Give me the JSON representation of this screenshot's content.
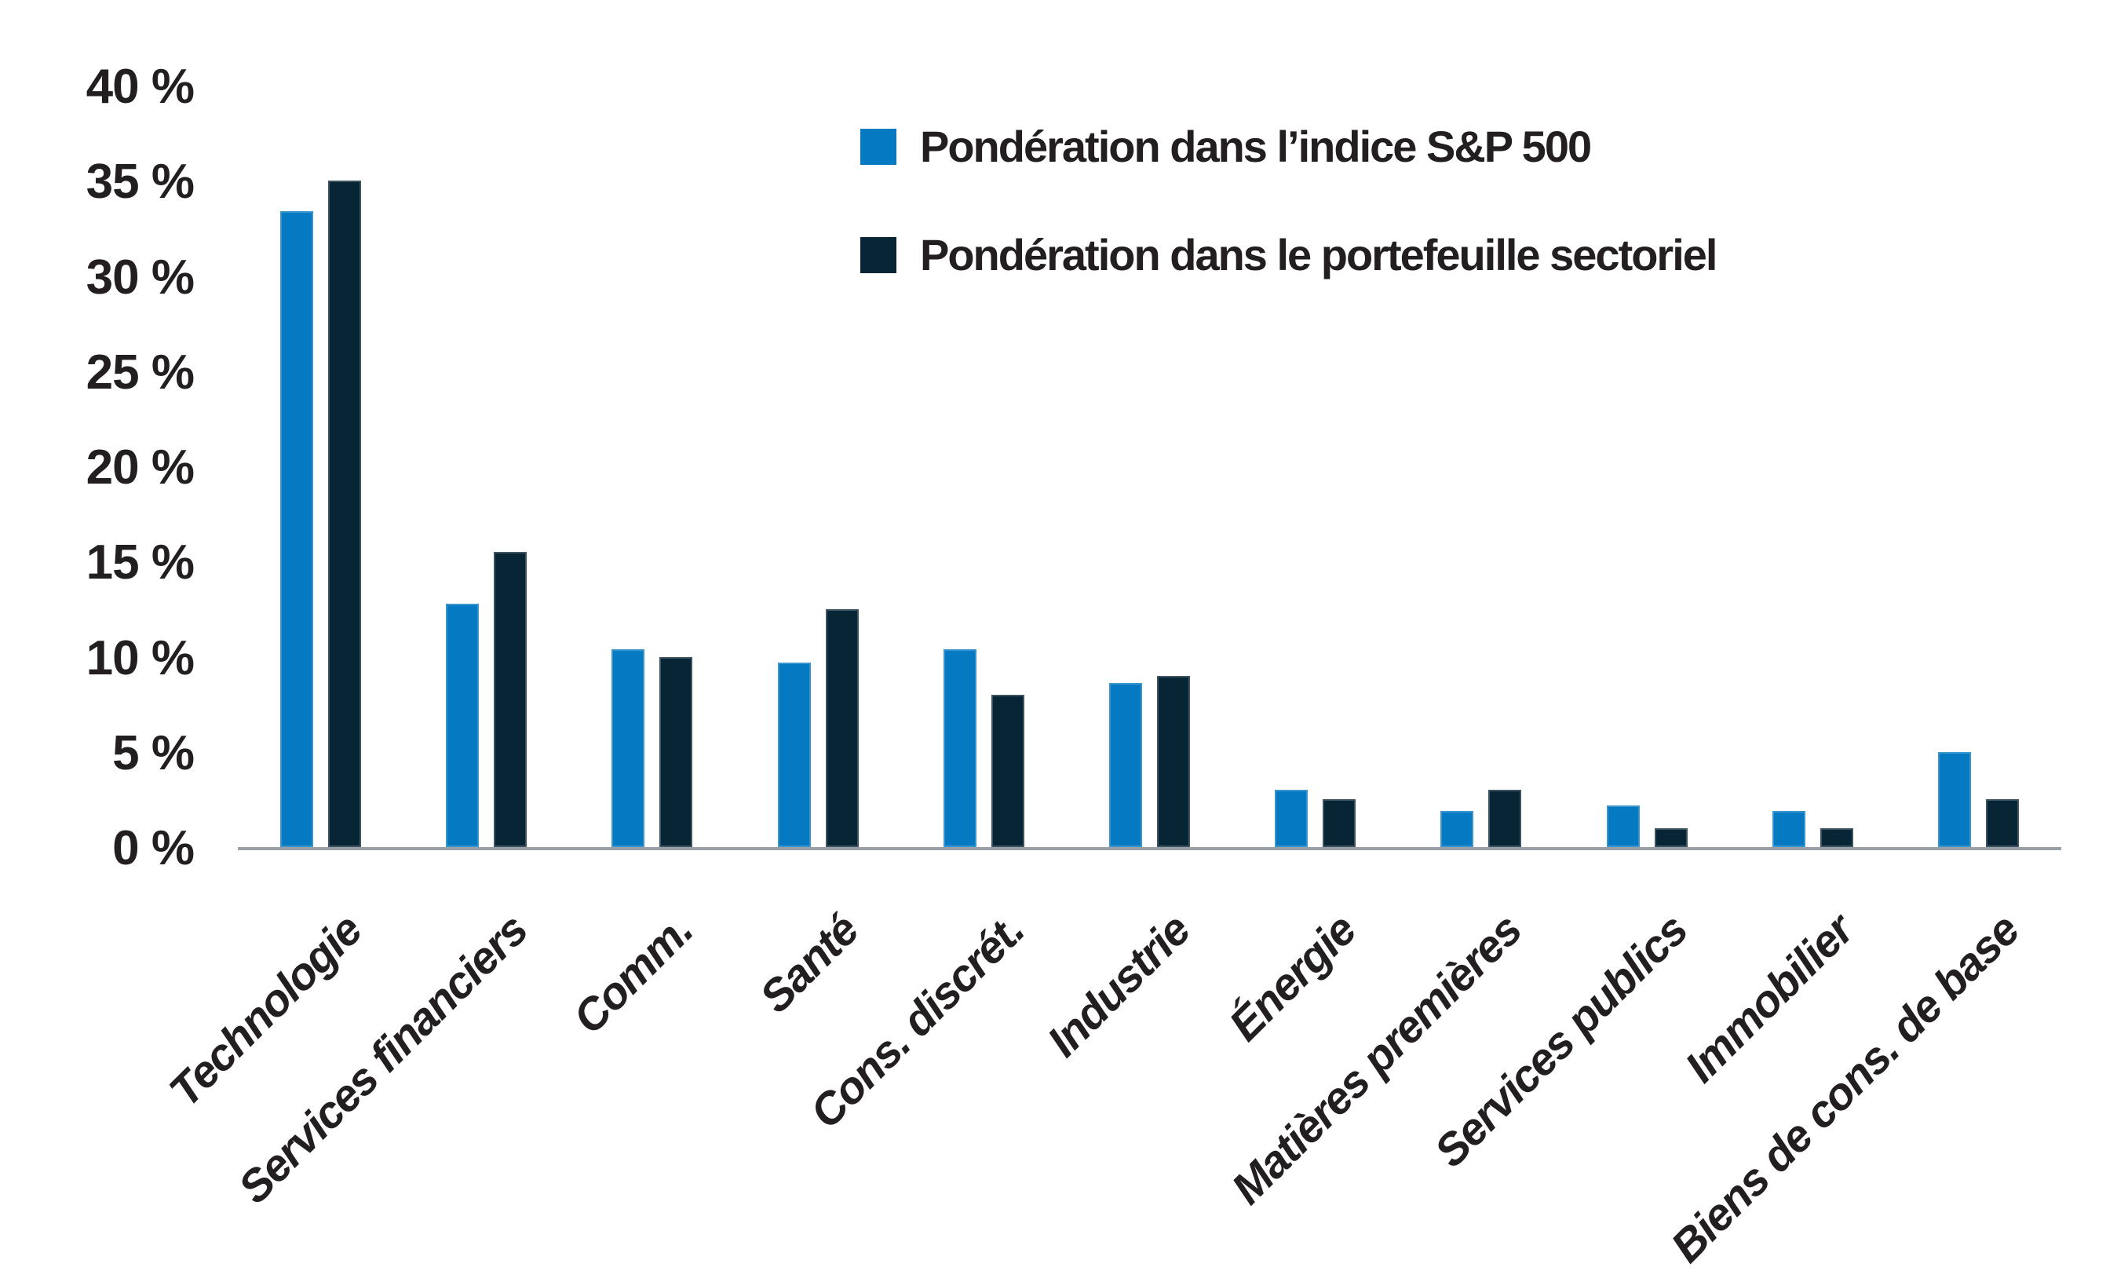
{
  "chart_data": {
    "type": "bar",
    "title": "",
    "xlabel": "",
    "ylabel": "",
    "ylim": [
      0,
      40
    ],
    "ytick_step": 5,
    "grid": false,
    "legend_position": "top-center",
    "y_ticks": [
      {
        "value": 0,
        "label": "0 %"
      },
      {
        "value": 5,
        "label": "5 %"
      },
      {
        "value": 10,
        "label": "10 %"
      },
      {
        "value": 15,
        "label": "15 %"
      },
      {
        "value": 20,
        "label": "20 %"
      },
      {
        "value": 25,
        "label": "25 %"
      },
      {
        "value": 30,
        "label": "30 %"
      },
      {
        "value": 35,
        "label": "35 %"
      },
      {
        "value": 40,
        "label": "40 %"
      }
    ],
    "categories": [
      "Technologie",
      "Services financiers",
      "Comm.",
      "Santé",
      "Cons. discrét.",
      "Industrie",
      "Énergie",
      "Matières premières",
      "Services publics",
      "Immobilier",
      "Biens de cons. de base"
    ],
    "series": [
      {
        "name": "Pondération dans l’indice S&P 500",
        "color": "#0579c1",
        "values": [
          33.4,
          12.8,
          10.4,
          9.7,
          10.4,
          8.6,
          3.0,
          1.9,
          2.2,
          1.9,
          5.0
        ]
      },
      {
        "name": "Pondération dans le portefeuille sectoriel",
        "color": "#082535",
        "values": [
          35.0,
          15.5,
          10.0,
          12.5,
          8.0,
          9.0,
          2.5,
          3.0,
          1.0,
          1.0,
          2.5
        ]
      }
    ],
    "axis_color": "#99a1a7",
    "text_color": "#231f20"
  }
}
